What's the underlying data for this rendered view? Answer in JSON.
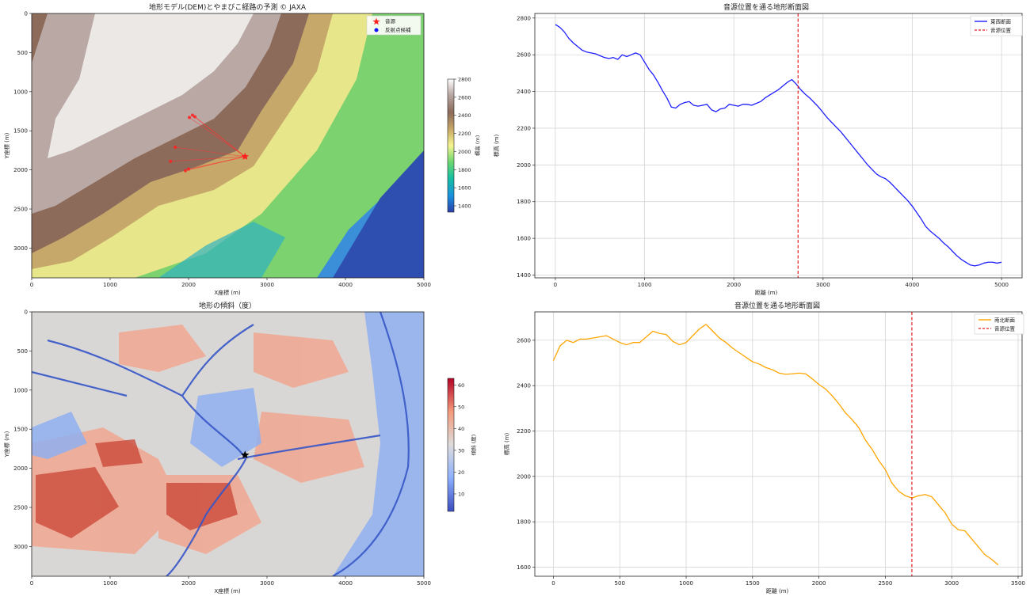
{
  "chart_data": [
    {
      "type": "heatmap",
      "title": "地形モデル(DEM)とやまびこ経路の予測 © JAXA",
      "xlabel": "X座標 (m)",
      "ylabel": "Y座標 (m)",
      "xlim": [
        0,
        5000
      ],
      "ylim": [
        3380,
        0
      ],
      "xticks": [
        0,
        1000,
        2000,
        3000,
        4000,
        5000
      ],
      "yticks": [
        0,
        500,
        1000,
        1500,
        2000,
        2500,
        3000
      ],
      "colorbar": {
        "label": "標高 (m)",
        "range": [
          1330,
          2800
        ],
        "ticks": [
          1400,
          1600,
          1800,
          2000,
          2200,
          2400,
          2600,
          2800
        ],
        "colormap": "terrain"
      },
      "legend": {
        "position": "top-right",
        "entries": [
          {
            "label": "音源",
            "marker": "star",
            "color": "#ff2020"
          },
          {
            "label": "反射点候補",
            "marker": "circle",
            "color": "#1010ff"
          }
        ]
      },
      "source": {
        "x": 2720,
        "y": 1830
      },
      "reflection_points": [
        {
          "x": 2050,
          "y": 1300
        },
        {
          "x": 2080,
          "y": 1320
        },
        {
          "x": 2010,
          "y": 1330
        },
        {
          "x": 2000,
          "y": 1990
        },
        {
          "x": 1960,
          "y": 2010
        },
        {
          "x": 1830,
          "y": 1710
        },
        {
          "x": 1770,
          "y": 1890
        }
      ],
      "grid": false
    },
    {
      "type": "line",
      "title": "音源位置を通る地形断面図",
      "xlabel": "距離 (m)",
      "ylabel": "標高 (m)",
      "xlim": [
        -230,
        5230
      ],
      "ylim": [
        1385,
        2825
      ],
      "xticks": [
        0,
        1000,
        2000,
        3000,
        4000,
        5000
      ],
      "yticks": [
        1400,
        1600,
        1800,
        2000,
        2200,
        2400,
        2600,
        2800
      ],
      "grid": true,
      "legend_position": "top-right",
      "series": [
        {
          "name": "東西断面",
          "color": "#1f1fff",
          "x": [
            0,
            50,
            100,
            150,
            200,
            250,
            300,
            350,
            400,
            450,
            500,
            550,
            600,
            650,
            700,
            750,
            800,
            850,
            900,
            950,
            1000,
            1050,
            1100,
            1150,
            1200,
            1250,
            1300,
            1350,
            1400,
            1450,
            1500,
            1550,
            1600,
            1650,
            1700,
            1750,
            1800,
            1850,
            1900,
            1950,
            2000,
            2050,
            2100,
            2150,
            2200,
            2250,
            2300,
            2350,
            2400,
            2450,
            2500,
            2550,
            2600,
            2650,
            2700,
            2750,
            2800,
            2850,
            2900,
            2950,
            3000,
            3050,
            3100,
            3150,
            3200,
            3250,
            3300,
            3350,
            3400,
            3450,
            3500,
            3550,
            3600,
            3650,
            3700,
            3750,
            3800,
            3850,
            3900,
            3950,
            4000,
            4050,
            4100,
            4150,
            4200,
            4250,
            4300,
            4350,
            4400,
            4450,
            4500,
            4550,
            4600,
            4650,
            4700,
            4750,
            4800,
            4850,
            4900,
            4950,
            5000
          ],
          "values": [
            2765,
            2750,
            2725,
            2690,
            2665,
            2645,
            2625,
            2615,
            2610,
            2605,
            2595,
            2585,
            2580,
            2585,
            2575,
            2600,
            2590,
            2600,
            2610,
            2600,
            2560,
            2520,
            2490,
            2450,
            2405,
            2365,
            2315,
            2310,
            2330,
            2340,
            2345,
            2325,
            2320,
            2325,
            2330,
            2300,
            2290,
            2305,
            2310,
            2330,
            2325,
            2320,
            2330,
            2330,
            2325,
            2335,
            2345,
            2365,
            2380,
            2395,
            2410,
            2430,
            2450,
            2465,
            2440,
            2410,
            2385,
            2365,
            2340,
            2315,
            2285,
            2255,
            2230,
            2205,
            2180,
            2150,
            2120,
            2090,
            2060,
            2030,
            2000,
            1975,
            1950,
            1935,
            1925,
            1905,
            1880,
            1855,
            1830,
            1805,
            1775,
            1740,
            1705,
            1665,
            1640,
            1620,
            1600,
            1575,
            1555,
            1530,
            1505,
            1485,
            1470,
            1455,
            1450,
            1455,
            1465,
            1470,
            1470,
            1465,
            1470
          ]
        }
      ],
      "vline": {
        "name": "音源位置",
        "x": 2720,
        "color": "#e02020",
        "style": "dashed"
      }
    },
    {
      "type": "heatmap",
      "title": "地形の傾斜（度）",
      "xlabel": "X座標 (m)",
      "ylabel": "Y座標 (m)",
      "xlim": [
        0,
        5000
      ],
      "ylim": [
        3380,
        0
      ],
      "xticks": [
        0,
        1000,
        2000,
        3000,
        4000,
        5000
      ],
      "yticks": [
        0,
        500,
        1000,
        1500,
        2000,
        2500,
        3000
      ],
      "colorbar": {
        "label": "傾斜 (度)",
        "range": [
          2,
          63
        ],
        "ticks": [
          10,
          20,
          30,
          40,
          50,
          60
        ],
        "colormap": "coolwarm"
      },
      "source": {
        "x": 2720,
        "y": 1830,
        "marker": "star",
        "color": "#000000"
      },
      "grid": false
    },
    {
      "type": "line",
      "title": "音源位置を通る地形断面図",
      "xlabel": "距離 (m)",
      "ylabel": "標高 (m)",
      "xlim": [
        -140,
        3530
      ],
      "ylim": [
        1560,
        2725
      ],
      "xticks": [
        0,
        500,
        1000,
        1500,
        2000,
        2500,
        3000,
        3500
      ],
      "yticks": [
        1600,
        1800,
        2000,
        2200,
        2400,
        2600
      ],
      "grid": true,
      "legend_position": "top-right",
      "series": [
        {
          "name": "南北断面",
          "color": "#ffa500",
          "x": [
            0,
            50,
            100,
            150,
            200,
            250,
            300,
            350,
            400,
            450,
            500,
            550,
            600,
            650,
            700,
            750,
            800,
            850,
            900,
            950,
            1000,
            1050,
            1100,
            1150,
            1200,
            1250,
            1300,
            1350,
            1400,
            1450,
            1500,
            1550,
            1600,
            1650,
            1700,
            1750,
            1800,
            1850,
            1900,
            1950,
            2000,
            2050,
            2100,
            2150,
            2200,
            2250,
            2300,
            2350,
            2400,
            2450,
            2500,
            2550,
            2600,
            2650,
            2700,
            2750,
            2800,
            2850,
            2900,
            2950,
            3000,
            3050,
            3100,
            3150,
            3200,
            3250,
            3300,
            3350
          ],
          "values": [
            2510,
            2575,
            2600,
            2590,
            2605,
            2605,
            2610,
            2615,
            2620,
            2605,
            2590,
            2580,
            2590,
            2590,
            2615,
            2640,
            2630,
            2625,
            2595,
            2580,
            2590,
            2620,
            2650,
            2670,
            2640,
            2610,
            2590,
            2565,
            2545,
            2525,
            2505,
            2495,
            2480,
            2470,
            2455,
            2450,
            2452,
            2455,
            2452,
            2430,
            2405,
            2385,
            2355,
            2320,
            2280,
            2250,
            2215,
            2160,
            2120,
            2070,
            2030,
            1970,
            1935,
            1915,
            1905,
            1915,
            1920,
            1910,
            1875,
            1840,
            1790,
            1765,
            1760,
            1725,
            1690,
            1655,
            1635,
            1610
          ]
        }
      ],
      "vline": {
        "name": "音源位置",
        "x": 2700,
        "color": "#e02020",
        "style": "dashed"
      }
    }
  ]
}
